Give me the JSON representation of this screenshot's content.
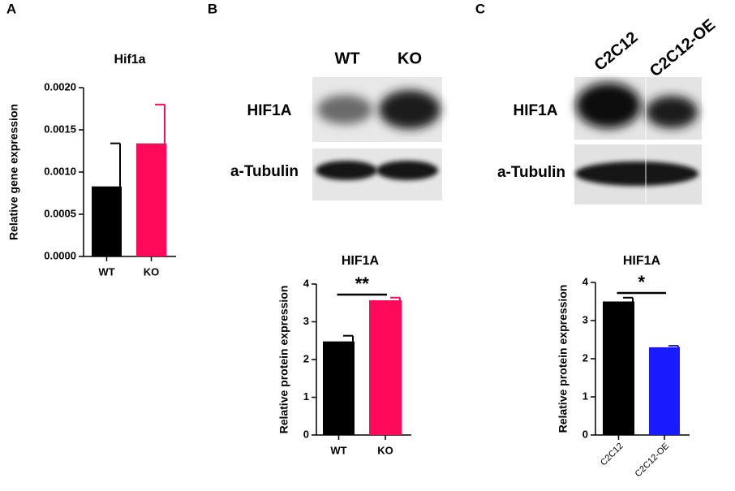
{
  "panel_labels": [
    "A",
    "B",
    "C"
  ],
  "blots": [
    {
      "lanes": [
        "WT",
        "KO"
      ],
      "rows": [
        "HIF1A",
        "a-Tubulin"
      ]
    },
    {
      "lanes": [
        "C2C12",
        "C2C12-OE"
      ],
      "rows": [
        "HIF1A",
        "a-Tubulin"
      ]
    }
  ],
  "chart_data": [
    {
      "type": "bar",
      "title": "Hif1a",
      "y_label": "Relative gene expression",
      "categories": [
        "WT",
        "KO"
      ],
      "values": [
        0.00083,
        0.00134
      ],
      "errors": [
        0.00051,
        0.00046
      ],
      "colors": [
        "#000000",
        "#ff0a5a"
      ],
      "ylim": [
        0,
        0.002
      ],
      "yticks": [
        {
          "value": 0,
          "label": "0.0000"
        },
        {
          "value": 0.0005,
          "label": "0.0005"
        },
        {
          "value": 0.001,
          "label": "0.0010"
        },
        {
          "value": 0.0015,
          "label": "0.0015"
        },
        {
          "value": 0.002,
          "label": "0.0020"
        }
      ]
    },
    {
      "type": "bar",
      "title": "HIF1A",
      "y_label": "Relative protein expression",
      "categories": [
        "WT",
        "KO"
      ],
      "values": [
        2.48,
        3.57
      ],
      "errors": [
        0.15,
        0.07
      ],
      "colors": [
        "#000000",
        "#ff0a5a"
      ],
      "ylim": [
        0,
        4
      ],
      "yticks": [
        0,
        1,
        2,
        3,
        4
      ],
      "annotation": "**"
    },
    {
      "type": "bar",
      "title": "HIF1A",
      "y_label": "Relative protein expression",
      "categories": [
        "C2C12",
        "C2C12-OE"
      ],
      "values": [
        3.5,
        2.3
      ],
      "errors": [
        0.1,
        0.04
      ],
      "colors": [
        "#000000",
        "#1a1aff"
      ],
      "ylim": [
        0,
        4
      ],
      "yticks": [
        0,
        1,
        2,
        3,
        4
      ],
      "annotation": "*"
    }
  ]
}
